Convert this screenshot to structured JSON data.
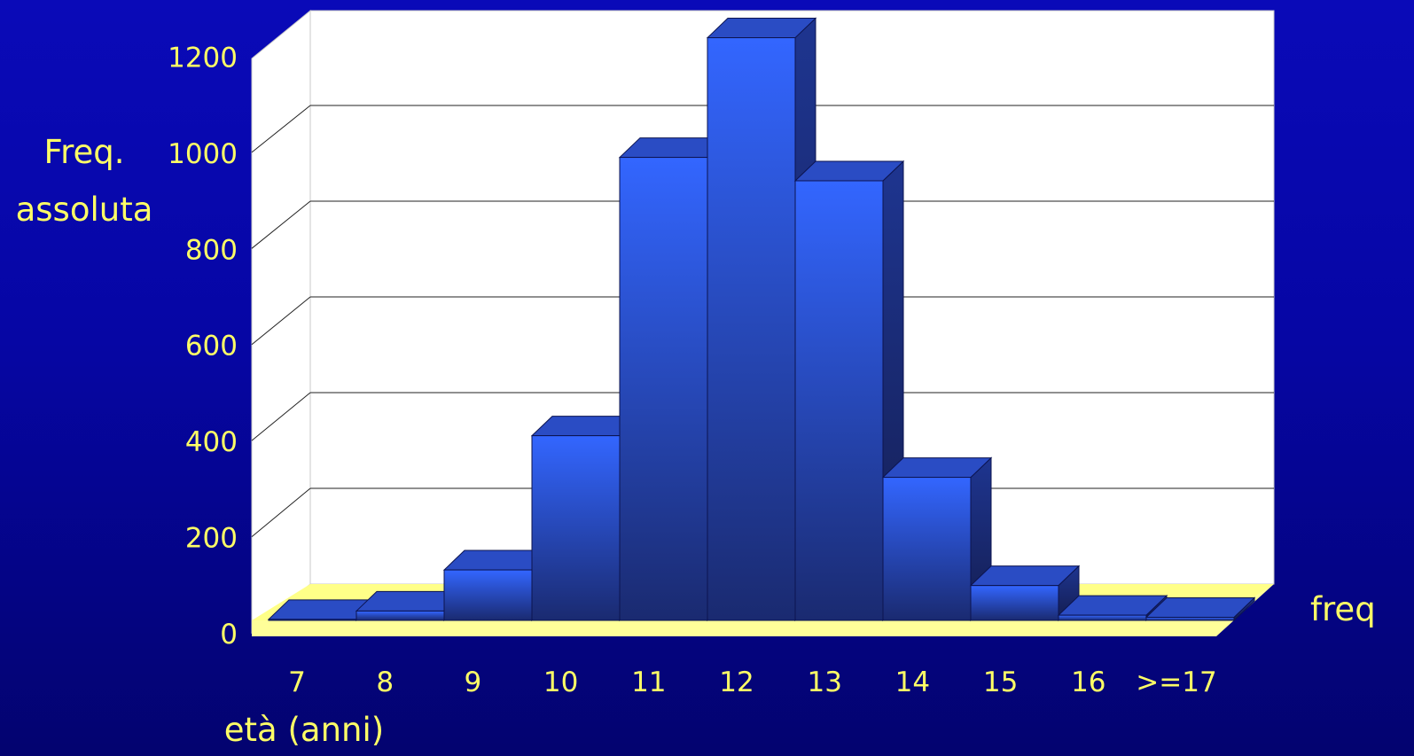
{
  "chart_data": {
    "type": "bar",
    "title": "",
    "ylabel": "Freq. assoluta",
    "ylabel_lines": [
      "Freq.",
      "assoluta"
    ],
    "xlabel": "età (anni)",
    "series_label": "freq",
    "categories": [
      "7",
      "8",
      "9",
      "10",
      "11",
      "12",
      "13",
      "14",
      "15",
      "16",
      ">=17"
    ],
    "series": [
      {
        "name": "freq",
        "values": [
          2,
          18,
          97,
          355,
          890,
          1120,
          845,
          275,
          67,
          10,
          6
        ]
      }
    ],
    "ylim": [
      0,
      1200
    ],
    "yticks": [
      0,
      200,
      400,
      600,
      800,
      1000,
      1200
    ],
    "grid": true,
    "style": "3d",
    "colors": {
      "bar_front": "#3366ff",
      "bar_front_dark": "#1a2a70",
      "bar_side": "#1b2e7a",
      "bar_top": "#2a4cc4",
      "floor": "#ffff99",
      "wall": "#ffffff",
      "text": "#ffff66"
    }
  }
}
